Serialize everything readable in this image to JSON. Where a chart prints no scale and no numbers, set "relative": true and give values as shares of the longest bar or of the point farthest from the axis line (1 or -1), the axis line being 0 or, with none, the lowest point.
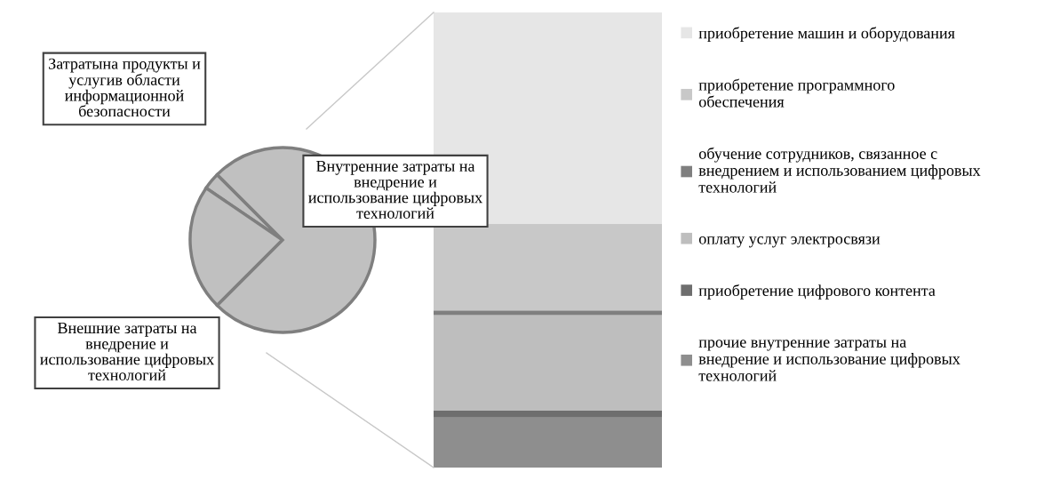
{
  "chart_data": [
    {
      "type": "pie",
      "categories": [
        "Затратына продукты и услугив области информационной безопасности",
        "Внешние затраты на внедрение и использование цифровых технологий",
        "Внутренние затраты на внедрение и использование цифровых технологий"
      ],
      "values": [
        3,
        22,
        75
      ],
      "colors": [
        "#c0c0c0",
        "#c0c0c0",
        "#c0c0c0"
      ]
    },
    {
      "type": "bar",
      "relative": true,
      "stacked": true,
      "categories": [
        null
      ],
      "legend": "right",
      "series": [
        {
          "name": "прочие внутренние затраты на внедрение и использование цифровых технологий",
          "color": "#8e8e8e",
          "values": [
            0.11
          ]
        },
        {
          "name": "приобретение цифрового контента",
          "color": "#6e6e6e",
          "values": [
            0.015
          ]
        },
        {
          "name": "оплату услуг электросвязи",
          "color": "#bebebe",
          "values": [
            0.21
          ]
        },
        {
          "name": "обучение сотрудников, связанное с внедрением и использованием цифровых технологий",
          "color": "#7f7f7f",
          "values": [
            0.01
          ]
        },
        {
          "name": "приобретение программного обеспечения",
          "color": "#c8c8c8",
          "values": [
            0.19
          ]
        },
        {
          "name": "приобретение машин и оборудования",
          "color": "#e6e6e6",
          "values": [
            0.465
          ]
        }
      ]
    }
  ]
}
